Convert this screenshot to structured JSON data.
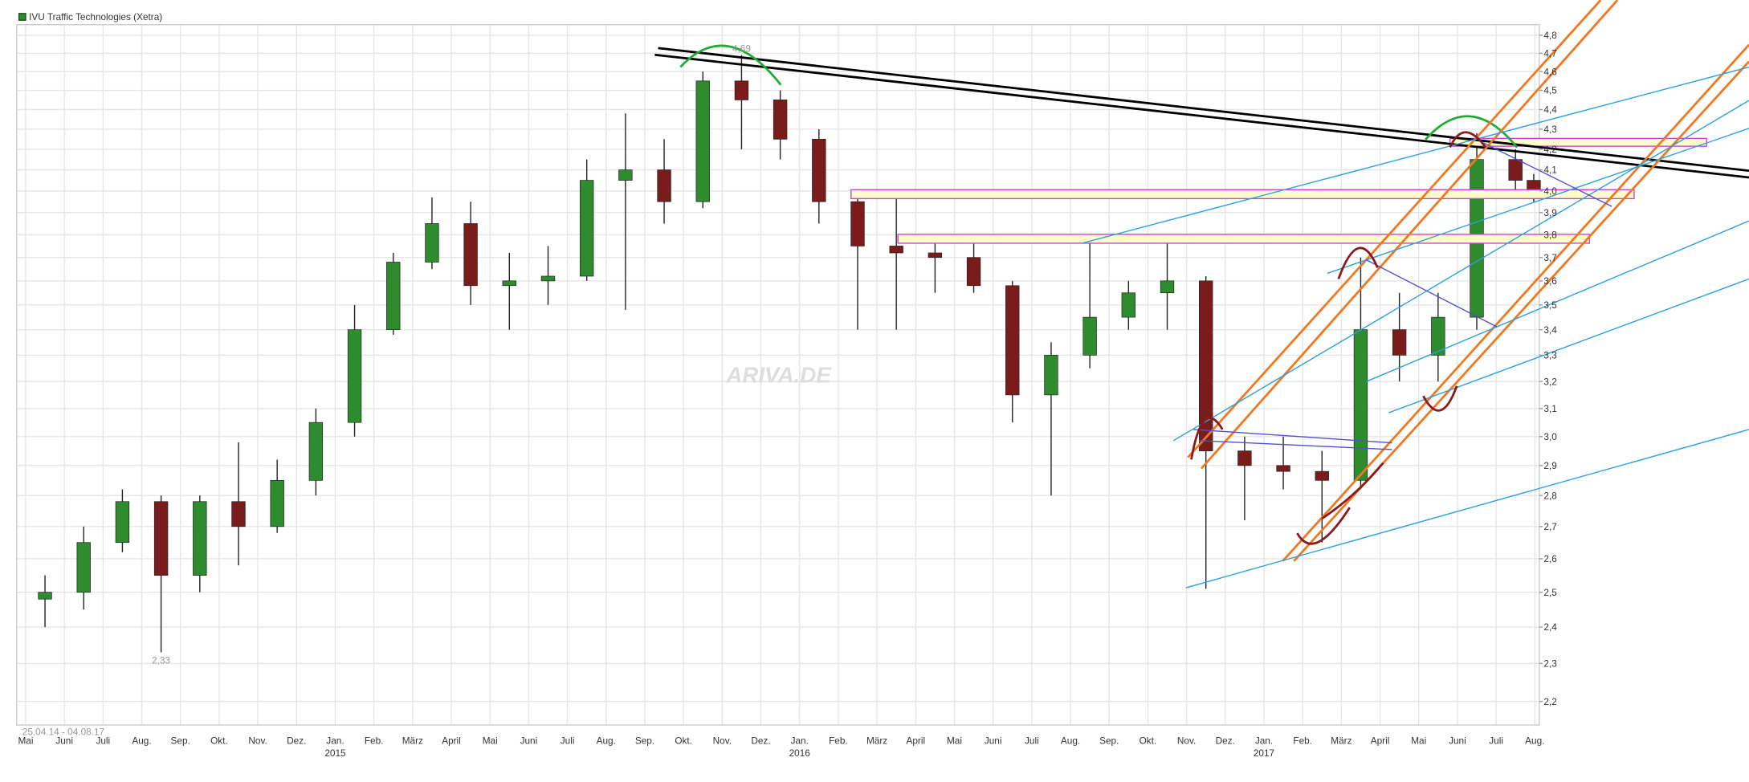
{
  "chart_data": {
    "type": "candlestick",
    "title": "IVU Traffic Technologies (Xetra)",
    "date_range": "25.04.14 - 04.08.17",
    "watermark": "ARIVA.DE",
    "categories": [
      "Mai",
      "Juni",
      "Juli",
      "Aug.",
      "Sep.",
      "Okt.",
      "Nov.",
      "Dez.",
      "Jan.",
      "Feb.",
      "März",
      "April",
      "Mai",
      "Juni",
      "Juli",
      "Aug.",
      "Sep.",
      "Okt.",
      "Nov.",
      "Dez.",
      "Jan.",
      "Feb.",
      "März",
      "April",
      "Mai",
      "Juni",
      "Juli",
      "Aug.",
      "Sep.",
      "Okt.",
      "Nov.",
      "Dez.",
      "Jan.",
      "Feb.",
      "März",
      "April",
      "Mai",
      "Juni",
      "Juli",
      "Aug."
    ],
    "years": [
      null,
      null,
      null,
      null,
      null,
      null,
      null,
      null,
      "2015",
      null,
      null,
      null,
      null,
      null,
      null,
      null,
      null,
      null,
      null,
      null,
      "2016",
      null,
      null,
      null,
      null,
      null,
      null,
      null,
      null,
      null,
      null,
      null,
      "2017",
      null,
      null,
      null,
      null,
      null,
      null,
      null
    ],
    "open": [
      2.48,
      2.5,
      2.65,
      2.78,
      2.55,
      2.78,
      2.7,
      2.85,
      3.05,
      3.4,
      3.68,
      3.85,
      3.58,
      3.6,
      3.62,
      4.05,
      4.1,
      3.95,
      4.55,
      4.45,
      4.25,
      3.95,
      3.75,
      3.72,
      3.7,
      3.58,
      3.15,
      3.3,
      3.45,
      3.55,
      3.6,
      2.95,
      2.9,
      2.88,
      2.85,
      3.4,
      3.3,
      3.45,
      4.15,
      4.05
    ],
    "high": [
      2.55,
      2.7,
      2.82,
      2.8,
      2.8,
      2.98,
      2.92,
      3.1,
      3.5,
      3.72,
      3.97,
      3.95,
      3.72,
      3.75,
      4.15,
      4.38,
      4.25,
      4.6,
      4.69,
      4.5,
      4.3,
      4.0,
      4.0,
      3.8,
      3.78,
      3.6,
      3.35,
      3.78,
      3.6,
      3.8,
      3.62,
      3.0,
      3.0,
      2.95,
      3.7,
      3.55,
      3.55,
      4.28,
      4.2,
      4.08
    ],
    "low": [
      2.4,
      2.45,
      2.62,
      2.33,
      2.5,
      2.58,
      2.68,
      2.8,
      3.0,
      3.38,
      3.65,
      3.5,
      3.4,
      3.5,
      3.6,
      3.48,
      3.85,
      3.92,
      4.2,
      4.15,
      3.85,
      3.4,
      3.4,
      3.55,
      3.55,
      3.05,
      2.8,
      3.25,
      3.4,
      3.4,
      2.51,
      2.72,
      2.82,
      2.65,
      2.82,
      3.2,
      3.2,
      3.4,
      3.98,
      3.95
    ],
    "close": [
      2.5,
      2.65,
      2.78,
      2.55,
      2.78,
      2.7,
      2.85,
      3.05,
      3.4,
      3.68,
      3.85,
      3.58,
      3.6,
      3.62,
      4.05,
      4.1,
      3.95,
      4.55,
      4.45,
      4.25,
      3.95,
      3.75,
      3.72,
      3.7,
      3.58,
      3.15,
      3.3,
      3.45,
      3.55,
      3.6,
      2.95,
      2.9,
      2.88,
      2.85,
      3.4,
      3.3,
      3.45,
      4.15,
      4.05,
      3.98
    ],
    "up_color": "#2e8b2e",
    "down_color": "#7a1c1c",
    "annotations": [
      {
        "text": "2,33",
        "value": 2.33
      },
      {
        "text": "4,69",
        "value": 4.69
      }
    ],
    "log_scale": true,
    "grid": true,
    "ylim": [
      2.14,
      4.86
    ],
    "yticks": [
      {
        "value": 2.2,
        "label": "2,2"
      },
      {
        "value": 2.3,
        "label": "2,3"
      },
      {
        "value": 2.4,
        "label": "2,4"
      },
      {
        "value": 2.5,
        "label": "2,5"
      },
      {
        "value": 2.6,
        "label": "2,6"
      },
      {
        "value": 2.7,
        "label": "2,7"
      },
      {
        "value": 2.8,
        "label": "2,8"
      },
      {
        "value": 2.9,
        "label": "2,9"
      },
      {
        "value": 3.0,
        "label": "3,0"
      },
      {
        "value": 3.1,
        "label": "3,1"
      },
      {
        "value": 3.2,
        "label": "3,2"
      },
      {
        "value": 3.3,
        "label": "3,3"
      },
      {
        "value": 3.4,
        "label": "3,4"
      },
      {
        "value": 3.5,
        "label": "3,5"
      },
      {
        "value": 3.6,
        "label": "3,6"
      },
      {
        "value": 3.7,
        "label": "3,7"
      },
      {
        "value": 3.8,
        "label": "3,8"
      },
      {
        "value": 3.9,
        "label": "3,9"
      },
      {
        "value": 4.0,
        "label": "4,0"
      },
      {
        "value": 4.1,
        "label": "4,1"
      },
      {
        "value": 4.2,
        "label": "4,2"
      },
      {
        "value": 4.3,
        "label": "4,3"
      },
      {
        "value": 4.4,
        "label": "4,4"
      },
      {
        "value": 4.5,
        "label": "4,5"
      },
      {
        "value": 4.6,
        "label": "4,6"
      },
      {
        "value": 4.7,
        "label": "4,7"
      },
      {
        "value": 4.8,
        "label": "4,8"
      }
    ]
  }
}
